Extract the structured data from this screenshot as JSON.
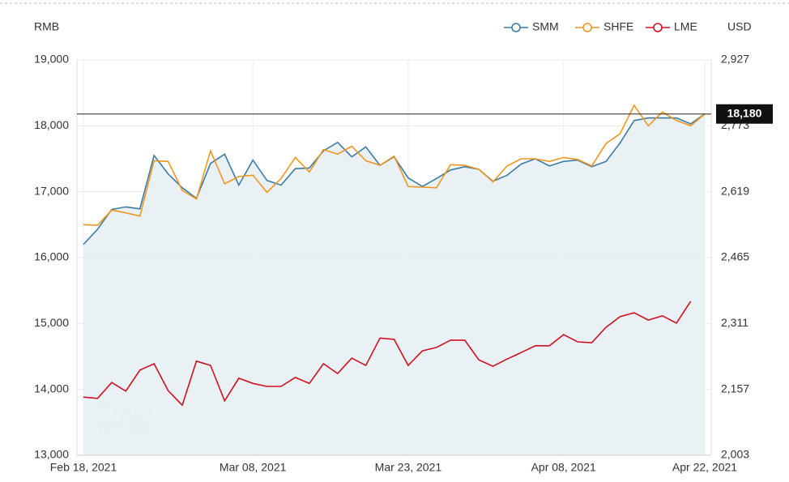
{
  "chart_data": {
    "type": "line",
    "y_axis_title": "RMB",
    "y2_axis_title": "USD",
    "categories": [
      "Feb 18, 2021",
      null,
      null,
      null,
      null,
      null,
      null,
      null,
      null,
      null,
      null,
      null,
      "Mar 08, 2021",
      null,
      null,
      null,
      null,
      null,
      null,
      null,
      null,
      null,
      null,
      "Mar 23, 2021",
      null,
      null,
      null,
      null,
      null,
      null,
      null,
      null,
      null,
      null,
      "Apr 08, 2021",
      null,
      null,
      null,
      null,
      null,
      null,
      null,
      null,
      null,
      "Apr 22, 2021"
    ],
    "series": [
      {
        "name": "SMM",
        "color": "#3a7ca5",
        "area": true,
        "values": [
          16200,
          16430,
          16730,
          16770,
          16740,
          17550,
          17270,
          17060,
          16900,
          17430,
          17570,
          17100,
          17480,
          17170,
          17100,
          17350,
          17360,
          17620,
          17750,
          17530,
          17680,
          17400,
          17530,
          17210,
          17080,
          17200,
          17330,
          17380,
          17340,
          17160,
          17250,
          17420,
          17500,
          17390,
          17460,
          17480,
          17380,
          17460,
          17740,
          18080,
          18120,
          18120,
          18120,
          18030,
          18180
        ]
      },
      {
        "name": "SHFE",
        "color": "#f0961e",
        "values": [
          16500,
          16490,
          16720,
          16680,
          16630,
          17470,
          17460,
          17020,
          16890,
          17620,
          17120,
          17230,
          17250,
          16990,
          17200,
          17520,
          17300,
          17640,
          17570,
          17690,
          17470,
          17400,
          17540,
          17080,
          17070,
          17060,
          17410,
          17400,
          17340,
          17150,
          17390,
          17500,
          17500,
          17460,
          17520,
          17490,
          17390,
          17730,
          17880,
          18310,
          18000,
          18210,
          18080,
          18000,
          18180
        ]
      },
      {
        "name": "LME",
        "color": "#d0101e",
        "axis": "y2",
        "values": [
          2139,
          2136,
          2173,
          2153,
          2202,
          2217,
          2154,
          2120,
          2223,
          2213,
          2130,
          2183,
          2171,
          2164,
          2164,
          2185,
          2171,
          2217,
          2194,
          2230,
          2213,
          2277,
          2274,
          2213,
          2247,
          2255,
          2272,
          2272,
          2226,
          2211,
          2228,
          2243,
          2259,
          2259,
          2285,
          2268,
          2266,
          2302,
          2327,
          2336,
          2319,
          2329,
          2312,
          2363,
          null
        ]
      }
    ],
    "ylim": [
      13000,
      19000
    ],
    "yticks": [
      {
        "value": 13000,
        "label": "13,000"
      },
      {
        "value": 14000,
        "label": "14,000"
      },
      {
        "value": 15000,
        "label": "15,000"
      },
      {
        "value": 16000,
        "label": "16,000"
      },
      {
        "value": 17000,
        "label": "17,000"
      },
      {
        "value": 18000,
        "label": "18,000"
      },
      {
        "value": 19000,
        "label": "19,000"
      }
    ],
    "y2lim": [
      2003,
      2927
    ],
    "y2ticks": [
      {
        "value": 2003,
        "label": "2,003"
      },
      {
        "value": 2157,
        "label": "2,157"
      },
      {
        "value": 2311,
        "label": "2,311"
      },
      {
        "value": 2465,
        "label": "2,465"
      },
      {
        "value": 2619,
        "label": "2,619"
      },
      {
        "value": 2773,
        "label": "2,773"
      },
      {
        "value": 2927,
        "label": "2,927"
      }
    ],
    "reference_line": {
      "value": 18180,
      "label": "18,180"
    },
    "watermark": [
      "SMM",
      "metal.com"
    ],
    "grid": true,
    "legend": "top-right"
  }
}
